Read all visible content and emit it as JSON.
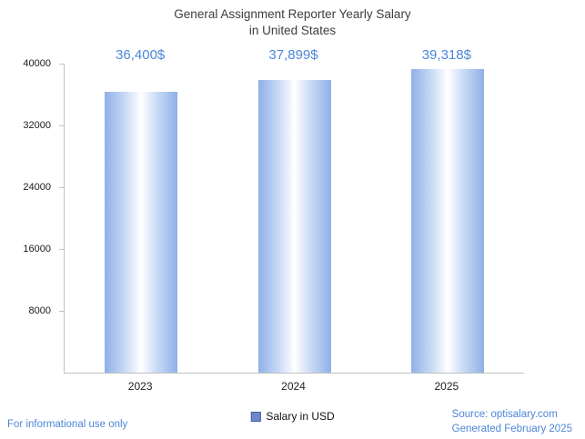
{
  "title": {
    "line1": "General Assignment Reporter Yearly Salary",
    "line2": "in United States"
  },
  "chart_data": {
    "type": "bar",
    "title": "General Assignment Reporter Yearly Salary in United States",
    "categories": [
      "2023",
      "2024",
      "2025"
    ],
    "values": [
      36400,
      37899,
      39318
    ],
    "value_labels": [
      "36,400$",
      "37,899$",
      "39,318$"
    ],
    "series": [
      {
        "name": "Salary in USD",
        "values": [
          36400,
          37899,
          39318
        ]
      }
    ],
    "xlabel": "",
    "ylabel": "",
    "ylim": [
      0,
      40000
    ],
    "yticks": [
      8000,
      16000,
      24000,
      32000,
      40000
    ],
    "grid": false,
    "legend_label": "Salary in USD",
    "legend_position": "bottom",
    "colors": {
      "value_label": "#4e86d8",
      "bar_edge": "#8fb0e8",
      "bar_center": "#ffffff",
      "legend_swatch": "#6e87ca",
      "axis_line": "#c2c2c2",
      "title_text": "#3d3d3d",
      "footer_text": "#4e86d8"
    }
  },
  "footer": {
    "left": "For informational use only",
    "source": "Source: optisalary.com",
    "generated": "Generated February 2025"
  }
}
